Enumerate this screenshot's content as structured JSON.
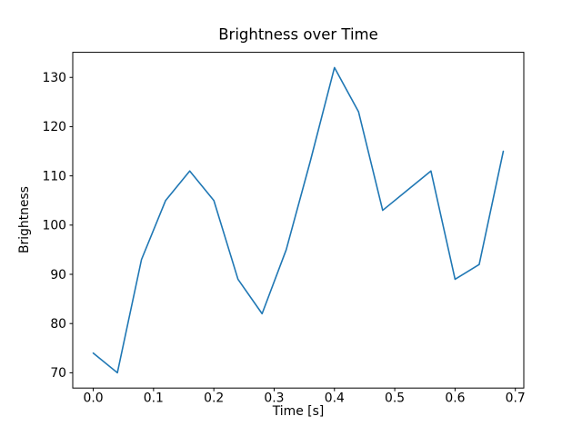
{
  "figure": {
    "title": "Brightness over Time",
    "xlabel": "Time [s]",
    "ylabel": "Brightness"
  },
  "chart_data": {
    "type": "line",
    "title": "Brightness over Time",
    "xlabel": "Time [s]",
    "ylabel": "Brightness",
    "x": [
      0.0,
      0.04,
      0.08,
      0.12,
      0.16,
      0.2,
      0.24,
      0.28,
      0.32,
      0.36,
      0.4,
      0.44,
      0.48,
      0.52,
      0.56,
      0.6,
      0.64,
      0.68
    ],
    "y": [
      74,
      70,
      93,
      105,
      111,
      105,
      89,
      82,
      95,
      113,
      132,
      123,
      103,
      107,
      111,
      89,
      92,
      115
    ],
    "xlim": [
      -0.034,
      0.714
    ],
    "ylim": [
      66.9,
      135.1
    ],
    "xticks": [
      0.0,
      0.1,
      0.2,
      0.3,
      0.4,
      0.5,
      0.6,
      0.7
    ],
    "xtick_labels": [
      "0.0",
      "0.1",
      "0.2",
      "0.3",
      "0.4",
      "0.5",
      "0.6",
      "0.7"
    ],
    "yticks": [
      70,
      80,
      90,
      100,
      110,
      120,
      130
    ],
    "ytick_labels": [
      "70",
      "80",
      "90",
      "100",
      "110",
      "120",
      "130"
    ],
    "line_color": "#1f77b4",
    "axes_color": "#000000",
    "background_color": "#ffffff",
    "grid": false,
    "legend": "none"
  }
}
